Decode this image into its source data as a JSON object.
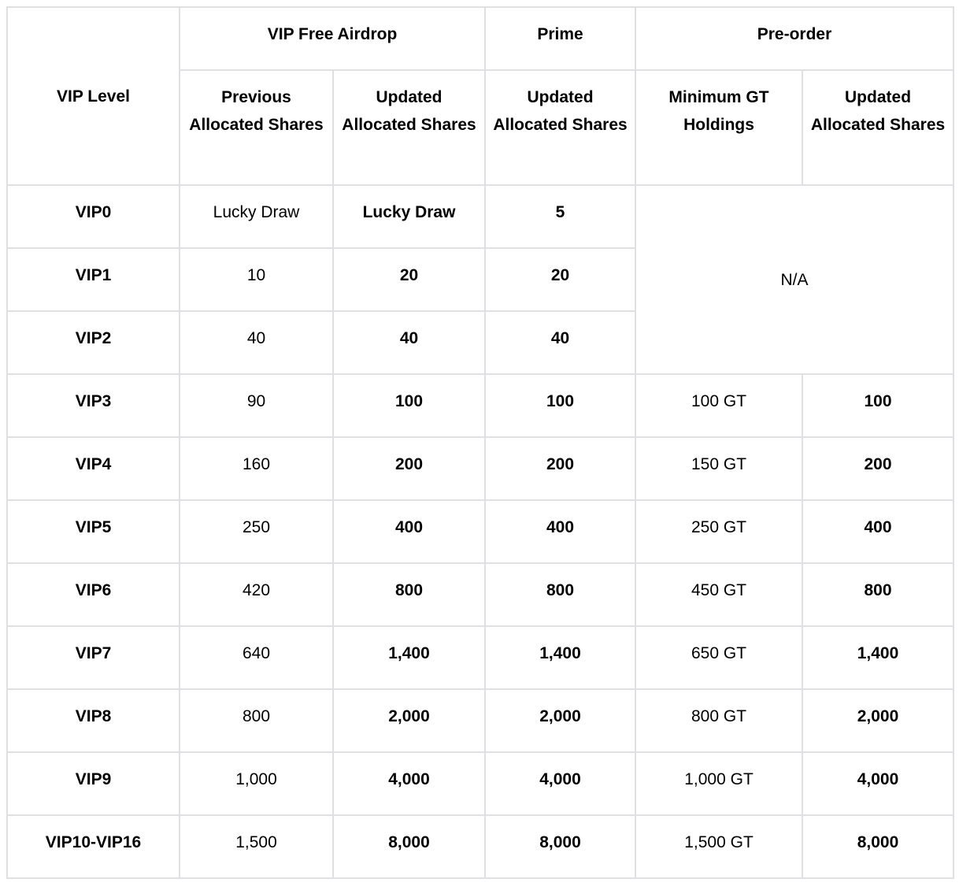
{
  "page": {
    "background_color": "#ffffff",
    "text_color": "#000000",
    "border_color": "#dee0e3"
  },
  "table": {
    "corner_header": "VIP Level",
    "groups": {
      "vip_free_airdrop": "VIP Free Airdrop",
      "prime": "Prime",
      "pre_order": "Pre-order"
    },
    "sub_headers": [
      "Previous Allocated Shares",
      "Updated Allocated Shares",
      "Updated Allocated Shares",
      "Minimum GT Holdings",
      "Updated Allocated Shares"
    ],
    "na_label": "N/A",
    "na_span": {
      "rows": 3,
      "cols": 2
    },
    "rows": [
      {
        "level": "VIP0",
        "previous_allocated_shares": "Lucky Draw",
        "airdrop_updated_allocated_shares": "Lucky Draw",
        "prime_updated_allocated_shares": "5",
        "minimum_gt_holdings": null,
        "preorder_updated_allocated_shares": null
      },
      {
        "level": "VIP1",
        "previous_allocated_shares": "10",
        "airdrop_updated_allocated_shares": "20",
        "prime_updated_allocated_shares": "20",
        "minimum_gt_holdings": null,
        "preorder_updated_allocated_shares": null
      },
      {
        "level": "VIP2",
        "previous_allocated_shares": "40",
        "airdrop_updated_allocated_shares": "40",
        "prime_updated_allocated_shares": "40",
        "minimum_gt_holdings": null,
        "preorder_updated_allocated_shares": null
      },
      {
        "level": "VIP3",
        "previous_allocated_shares": "90",
        "airdrop_updated_allocated_shares": "100",
        "prime_updated_allocated_shares": "100",
        "minimum_gt_holdings": "100 GT",
        "preorder_updated_allocated_shares": "100"
      },
      {
        "level": "VIP4",
        "previous_allocated_shares": "160",
        "airdrop_updated_allocated_shares": "200",
        "prime_updated_allocated_shares": "200",
        "minimum_gt_holdings": "150 GT",
        "preorder_updated_allocated_shares": "200"
      },
      {
        "level": "VIP5",
        "previous_allocated_shares": "250",
        "airdrop_updated_allocated_shares": "400",
        "prime_updated_allocated_shares": "400",
        "minimum_gt_holdings": "250 GT",
        "preorder_updated_allocated_shares": "400"
      },
      {
        "level": "VIP6",
        "previous_allocated_shares": "420",
        "airdrop_updated_allocated_shares": "800",
        "prime_updated_allocated_shares": "800",
        "minimum_gt_holdings": "450 GT",
        "preorder_updated_allocated_shares": "800"
      },
      {
        "level": "VIP7",
        "previous_allocated_shares": "640",
        "airdrop_updated_allocated_shares": "1,400",
        "prime_updated_allocated_shares": "1,400",
        "minimum_gt_holdings": "650 GT",
        "preorder_updated_allocated_shares": "1,400"
      },
      {
        "level": "VIP8",
        "previous_allocated_shares": "800",
        "airdrop_updated_allocated_shares": "2,000",
        "prime_updated_allocated_shares": "2,000",
        "minimum_gt_holdings": "800 GT",
        "preorder_updated_allocated_shares": "2,000"
      },
      {
        "level": "VIP9",
        "previous_allocated_shares": "1,000",
        "airdrop_updated_allocated_shares": "4,000",
        "prime_updated_allocated_shares": "4,000",
        "minimum_gt_holdings": "1,000 GT",
        "preorder_updated_allocated_shares": "4,000"
      },
      {
        "level": "VIP10-VIP16",
        "previous_allocated_shares": "1,500",
        "airdrop_updated_allocated_shares": "8,000",
        "prime_updated_allocated_shares": "8,000",
        "minimum_gt_holdings": "1,500 GT",
        "preorder_updated_allocated_shares": "8,000"
      }
    ]
  }
}
